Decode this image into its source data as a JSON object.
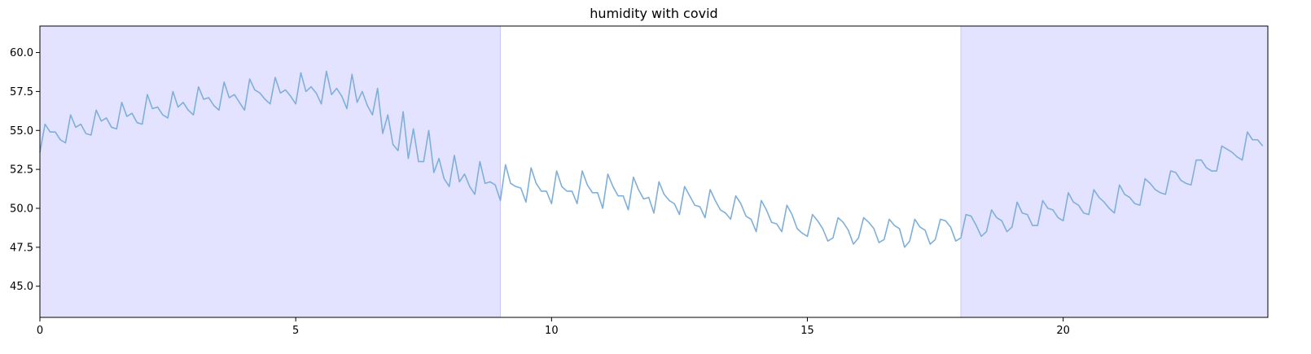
{
  "chart_data": {
    "type": "line",
    "title": "humidity with covid",
    "xlabel": "",
    "ylabel": "",
    "xlim": [
      0,
      24
    ],
    "ylim": [
      43.0,
      61.7
    ],
    "xticks": [
      0,
      5,
      10,
      15,
      20
    ],
    "yticks": [
      45.0,
      47.5,
      50.0,
      52.5,
      55.0,
      57.5,
      60.0
    ],
    "grid": false,
    "shaded_regions": [
      {
        "x_start": 0,
        "x_end": 9,
        "color": "#e3e3ff"
      },
      {
        "x_start": 18,
        "x_end": 24,
        "color": "#e3e3ff"
      }
    ],
    "series": [
      {
        "color": "#7fafd9",
        "x": [
          0.0,
          0.1,
          0.2,
          0.3,
          0.4,
          0.5,
          0.6,
          0.7,
          0.8,
          0.9,
          1.0,
          1.1,
          1.2,
          1.3,
          1.4,
          1.5,
          1.6,
          1.7,
          1.8,
          1.9,
          2.0,
          2.1,
          2.2,
          2.3,
          2.4,
          2.5,
          2.6,
          2.7,
          2.8,
          2.9,
          3.0,
          3.1,
          3.2,
          3.3,
          3.4,
          3.5,
          3.6,
          3.7,
          3.8,
          3.9,
          4.0,
          4.1,
          4.2,
          4.3,
          4.4,
          4.5,
          4.6,
          4.7,
          4.8,
          4.9,
          5.0,
          5.1,
          5.2,
          5.3,
          5.4,
          5.5,
          5.6,
          5.7,
          5.8,
          5.9,
          6.0,
          6.1,
          6.2,
          6.3,
          6.4,
          6.5,
          6.6,
          6.7,
          6.8,
          6.9,
          7.0,
          7.1,
          7.2,
          7.3,
          7.4,
          7.5,
          7.6,
          7.7,
          7.8,
          7.9,
          8.0,
          8.1,
          8.2,
          8.3,
          8.4,
          8.5,
          8.6,
          8.7,
          8.8,
          8.9,
          9.0,
          9.1,
          9.2,
          9.3,
          9.4,
          9.5,
          9.6,
          9.7,
          9.8,
          9.9,
          10.0,
          10.1,
          10.2,
          10.3,
          10.4,
          10.5,
          10.6,
          10.7,
          10.8,
          10.9,
          11.0,
          11.1,
          11.2,
          11.3,
          11.4,
          11.5,
          11.6,
          11.7,
          11.8,
          11.9,
          12.0,
          12.1,
          12.2,
          12.3,
          12.4,
          12.5,
          12.6,
          12.7,
          12.8,
          12.9,
          13.0,
          13.1,
          13.2,
          13.3,
          13.4,
          13.5,
          13.6,
          13.7,
          13.8,
          13.9,
          14.0,
          14.1,
          14.2,
          14.3,
          14.4,
          14.5,
          14.6,
          14.7,
          14.8,
          14.9,
          15.0,
          15.1,
          15.2,
          15.3,
          15.4,
          15.5,
          15.6,
          15.7,
          15.8,
          15.9,
          16.0,
          16.1,
          16.2,
          16.3,
          16.4,
          16.5,
          16.6,
          16.7,
          16.8,
          16.9,
          17.0,
          17.1,
          17.2,
          17.3,
          17.4,
          17.5,
          17.6,
          17.7,
          17.8,
          17.9,
          18.0,
          18.1,
          18.2,
          18.3,
          18.4,
          18.5,
          18.6,
          18.7,
          18.8,
          18.9,
          19.0,
          19.1,
          19.2,
          19.3,
          19.4,
          19.5,
          19.6,
          19.7,
          19.8,
          19.9,
          20.0,
          20.1,
          20.2,
          20.3,
          20.4,
          20.5,
          20.6,
          20.7,
          20.8,
          20.9,
          21.0,
          21.1,
          21.2,
          21.3,
          21.4,
          21.5,
          21.6,
          21.7,
          21.8,
          21.9,
          22.0,
          22.1,
          22.2,
          22.3,
          22.4,
          22.5,
          22.6,
          22.7,
          22.8,
          22.9,
          23.0,
          23.1,
          23.2,
          23.3,
          23.4,
          23.5,
          23.6,
          23.7,
          23.8,
          23.9
        ],
        "y": [
          53.6,
          55.4,
          54.9,
          54.9,
          54.4,
          54.2,
          56.0,
          55.2,
          55.4,
          54.8,
          54.7,
          56.3,
          55.6,
          55.8,
          55.2,
          55.1,
          56.8,
          55.9,
          56.1,
          55.5,
          55.4,
          57.3,
          56.4,
          56.5,
          56.0,
          55.8,
          57.5,
          56.5,
          56.8,
          56.3,
          56.0,
          57.8,
          57.0,
          57.1,
          56.6,
          56.3,
          58.1,
          57.1,
          57.3,
          56.8,
          56.3,
          58.3,
          57.6,
          57.4,
          57.0,
          56.7,
          58.4,
          57.4,
          57.6,
          57.2,
          56.7,
          58.7,
          57.5,
          57.8,
          57.4,
          56.7,
          58.8,
          57.3,
          57.7,
          57.2,
          56.4,
          58.6,
          56.8,
          57.5,
          56.6,
          56.0,
          57.7,
          54.8,
          56.0,
          54.1,
          53.7,
          56.2,
          53.2,
          55.1,
          53.0,
          53.0,
          55.0,
          52.3,
          53.2,
          51.9,
          51.4,
          53.4,
          51.7,
          52.2,
          51.4,
          50.9,
          53.0,
          51.6,
          51.7,
          51.5,
          50.5,
          52.8,
          51.6,
          51.4,
          51.3,
          50.4,
          52.6,
          51.6,
          51.1,
          51.1,
          50.3,
          52.4,
          51.4,
          51.1,
          51.1,
          50.3,
          52.4,
          51.5,
          51.0,
          51.0,
          50.0,
          52.2,
          51.4,
          50.8,
          50.8,
          49.9,
          52.0,
          51.2,
          50.6,
          50.7,
          49.7,
          51.7,
          50.9,
          50.5,
          50.3,
          49.6,
          51.4,
          50.8,
          50.2,
          50.1,
          49.4,
          51.2,
          50.5,
          49.9,
          49.7,
          49.3,
          50.8,
          50.3,
          49.5,
          49.3,
          48.5,
          50.5,
          49.9,
          49.1,
          49.0,
          48.5,
          50.2,
          49.6,
          48.7,
          48.4,
          48.2,
          49.6,
          49.2,
          48.7,
          47.9,
          48.1,
          49.4,
          49.1,
          48.6,
          47.7,
          48.1,
          49.4,
          49.1,
          48.7,
          47.8,
          48.0,
          49.3,
          48.9,
          48.7,
          47.5,
          47.9,
          49.3,
          48.8,
          48.6,
          47.7,
          48.0,
          49.3,
          49.2,
          48.8,
          47.9,
          48.1,
          49.6,
          49.5,
          48.9,
          48.2,
          48.5,
          49.9,
          49.4,
          49.2,
          48.5,
          48.8,
          50.4,
          49.7,
          49.6,
          48.9,
          48.9,
          50.5,
          50.0,
          49.9,
          49.4,
          49.2,
          51.0,
          50.4,
          50.2,
          49.7,
          49.6,
          51.2,
          50.7,
          50.4,
          50.0,
          49.7,
          51.5,
          50.9,
          50.7,
          50.3,
          50.2,
          51.9,
          51.6,
          51.2,
          51.0,
          50.9,
          52.4,
          52.3,
          51.8,
          51.6,
          51.5,
          53.1,
          53.1,
          52.6,
          52.4,
          52.4,
          54.0,
          53.8,
          53.6,
          53.3,
          53.1,
          54.9,
          54.4,
          54.4,
          54.0
        ]
      }
    ]
  }
}
